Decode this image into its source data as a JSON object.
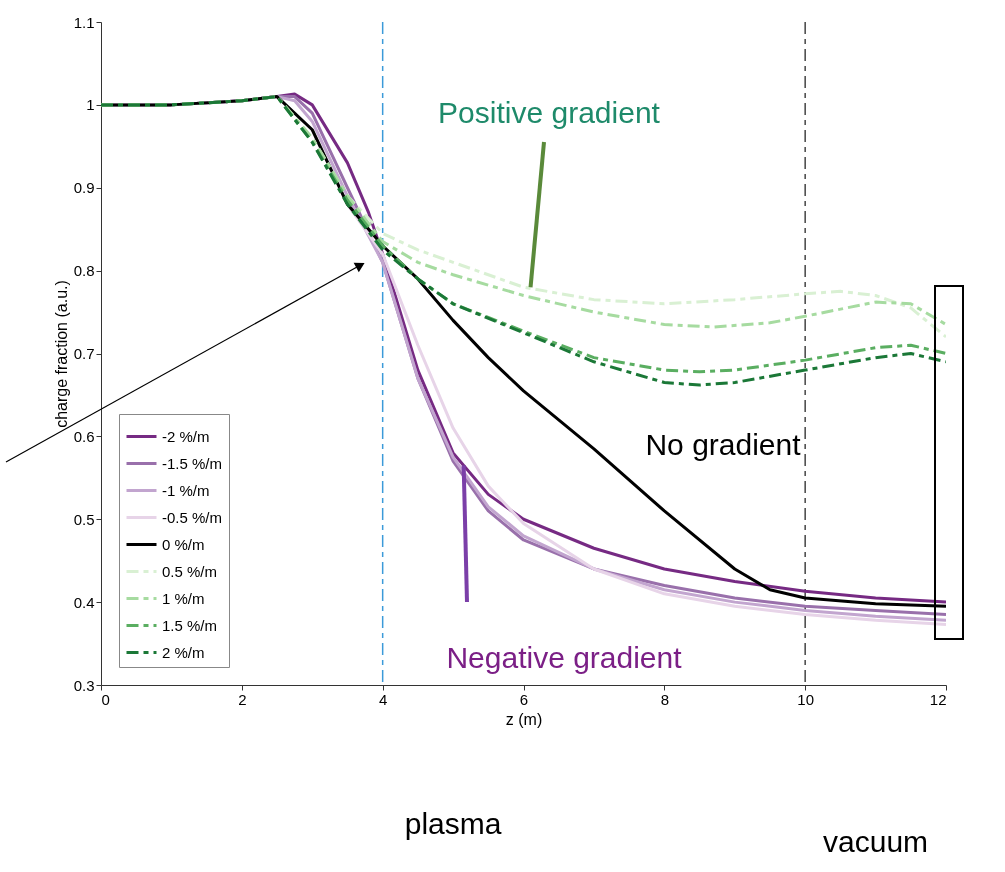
{
  "chart_data": {
    "type": "line",
    "xlabel": "z (m)",
    "ylabel": "charge fraction (a.u.)",
    "xlim": [
      0,
      12
    ],
    "ylim": [
      0.3,
      1.1
    ],
    "xticks": [
      0,
      2,
      4,
      6,
      8,
      10,
      12
    ],
    "yticks": [
      0.3,
      0.4,
      0.5,
      0.6,
      0.7,
      0.8,
      0.9,
      1,
      1.1
    ],
    "grid": false,
    "legend": "bottom left",
    "marker": "none",
    "series": [
      {
        "name": "-2 %/m",
        "color": "#762a83",
        "line_style": "solid",
        "x": [
          0,
          1,
          2,
          2.5,
          2.75,
          3,
          3.5,
          3.8,
          4,
          4.5,
          5,
          5.5,
          6,
          7,
          8,
          9,
          10,
          11,
          12
        ],
        "values": [
          1.0,
          1.0,
          1.005,
          1.01,
          1.013,
          1.0,
          0.93,
          0.87,
          0.82,
          0.68,
          0.58,
          0.53,
          0.5,
          0.465,
          0.44,
          0.425,
          0.413,
          0.405,
          0.4
        ]
      },
      {
        "name": "-1.5 %/m",
        "color": "#9970ab",
        "line_style": "solid",
        "x": [
          0,
          1,
          2,
          2.5,
          2.75,
          3,
          3.5,
          4,
          4.5,
          5,
          5.5,
          6,
          7,
          8,
          9,
          10,
          11,
          12
        ],
        "values": [
          1.0,
          1.0,
          1.005,
          1.01,
          1.01,
          0.99,
          0.9,
          0.81,
          0.67,
          0.57,
          0.51,
          0.475,
          0.44,
          0.42,
          0.405,
          0.395,
          0.39,
          0.385
        ]
      },
      {
        "name": "-1 %/m",
        "color": "#c2a5cf",
        "line_style": "solid",
        "x": [
          0,
          1,
          2,
          2.5,
          2.75,
          3,
          3.5,
          4,
          4.5,
          5,
          5.5,
          6,
          7,
          8,
          9,
          10,
          11,
          12
        ],
        "values": [
          1.0,
          1.0,
          1.005,
          1.01,
          1.005,
          0.98,
          0.89,
          0.81,
          0.67,
          0.575,
          0.515,
          0.48,
          0.44,
          0.415,
          0.4,
          0.39,
          0.383,
          0.378
        ]
      },
      {
        "name": "-0.5 %/m",
        "color": "#e7d4e8",
        "line_style": "solid",
        "x": [
          0,
          1,
          2,
          2.5,
          3,
          3.5,
          4,
          4.5,
          5,
          5.5,
          6,
          7,
          8,
          9,
          10,
          11,
          12
        ],
        "values": [
          1.0,
          1.0,
          1.005,
          1.01,
          0.97,
          0.88,
          0.82,
          0.71,
          0.61,
          0.54,
          0.495,
          0.44,
          0.41,
          0.395,
          0.385,
          0.378,
          0.373
        ]
      },
      {
        "name": "0 %/m",
        "color": "#000000",
        "line_style": "solid",
        "x": [
          0,
          1,
          2,
          2.5,
          3,
          3.5,
          4,
          4.5,
          5,
          5.5,
          6,
          7,
          8,
          9,
          9.5,
          10,
          11,
          12
        ],
        "values": [
          1.0,
          1.0,
          1.005,
          1.01,
          0.97,
          0.88,
          0.83,
          0.79,
          0.74,
          0.695,
          0.655,
          0.585,
          0.51,
          0.44,
          0.415,
          0.405,
          0.398,
          0.395
        ]
      },
      {
        "name": "0.5 %/m",
        "color": "#d9f0d3",
        "line_style": "dashed",
        "x": [
          0,
          1,
          2,
          2.5,
          3,
          3.5,
          4,
          4.5,
          5,
          6,
          7,
          8,
          9,
          10,
          10.5,
          11,
          11.5,
          12
        ],
        "values": [
          1.0,
          1.0,
          1.005,
          1.01,
          0.96,
          0.89,
          0.845,
          0.825,
          0.81,
          0.78,
          0.765,
          0.76,
          0.765,
          0.772,
          0.775,
          0.77,
          0.755,
          0.72
        ]
      },
      {
        "name": "1 %/m",
        "color": "#a6dba0",
        "line_style": "dashed",
        "x": [
          0,
          1,
          2,
          2.5,
          3,
          3.5,
          4,
          4.5,
          5,
          6,
          7,
          8,
          8.7,
          9.5,
          10,
          11,
          11.5,
          12
        ],
        "values": [
          1.0,
          1.0,
          1.005,
          1.01,
          0.96,
          0.89,
          0.835,
          0.81,
          0.795,
          0.77,
          0.75,
          0.735,
          0.732,
          0.737,
          0.745,
          0.762,
          0.76,
          0.735
        ]
      },
      {
        "name": "1.5 %/m",
        "color": "#5aae61",
        "line_style": "dashed",
        "x": [
          0,
          1,
          2,
          2.5,
          3,
          3.5,
          4,
          4.5,
          5,
          6,
          7,
          8,
          8.5,
          9,
          10,
          11,
          11.5,
          12
        ],
        "values": [
          1.0,
          1.0,
          1.005,
          1.01,
          0.955,
          0.885,
          0.83,
          0.79,
          0.76,
          0.727,
          0.695,
          0.68,
          0.678,
          0.68,
          0.692,
          0.707,
          0.71,
          0.7
        ]
      },
      {
        "name": "2 %/m",
        "color": "#1b7837",
        "line_style": "dashed",
        "x": [
          0,
          1,
          2,
          2.5,
          3,
          3.5,
          4,
          4.5,
          5,
          6,
          7,
          8,
          8.5,
          9,
          10,
          11,
          11.5,
          12
        ],
        "values": [
          1.0,
          1.0,
          1.005,
          1.01,
          0.955,
          0.88,
          0.825,
          0.79,
          0.76,
          0.725,
          0.69,
          0.665,
          0.662,
          0.665,
          0.68,
          0.695,
          0.7,
          0.69
        ]
      }
    ],
    "ref_lines": [
      {
        "axis": "x",
        "value": 4,
        "color": "#3b9ad9",
        "line_style": "dashed"
      },
      {
        "axis": "x",
        "value": 10,
        "color": "#444444",
        "line_style": "dashed"
      }
    ],
    "annotations": [
      {
        "text": "Positive gradient",
        "x": 6.1,
        "y": 0.78
      },
      "No gradient",
      {
        "text": "Negative gradient",
        "x": 5.15,
        "y": 0.565
      },
      "plasma",
      "vacuum"
    ]
  }
}
